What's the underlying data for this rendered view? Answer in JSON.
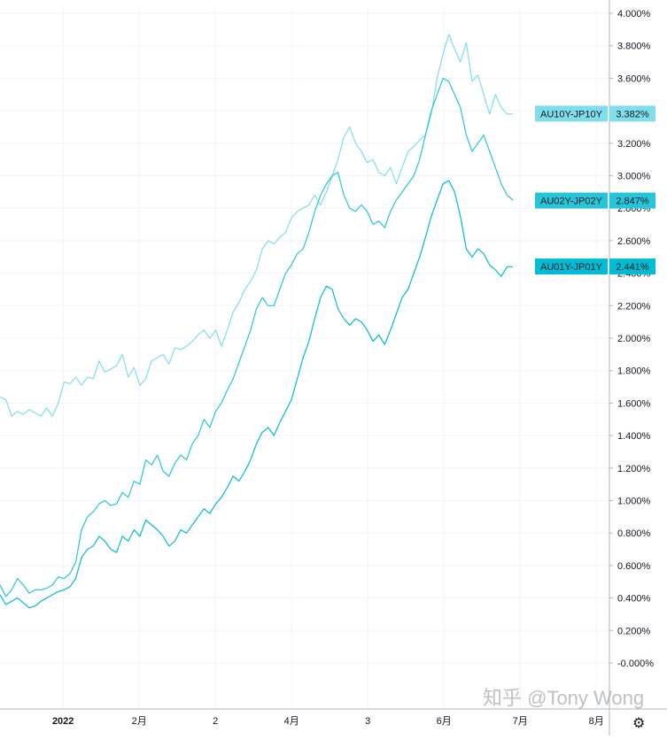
{
  "chart_data": {
    "type": "line",
    "ylim": [
      -0.1,
      4.05
    ],
    "yticks": [
      "4.000%",
      "3.800%",
      "3.600%",
      "3.400%",
      "3.200%",
      "3.000%",
      "2.800%",
      "2.600%",
      "2.400%",
      "2.200%",
      "2.000%",
      "1.800%",
      "1.600%",
      "1.400%",
      "1.200%",
      "1.000%",
      "0.800%",
      "0.600%",
      "0.400%",
      "0.200%",
      "-0.000%"
    ],
    "ytick_values": [
      4.0,
      3.8,
      3.6,
      3.4,
      3.2,
      3.0,
      2.8,
      2.6,
      2.4,
      2.2,
      2.0,
      1.8,
      1.6,
      1.4,
      1.2,
      1.0,
      0.8,
      0.6,
      0.4,
      0.2,
      0.0
    ],
    "xticks": [
      {
        "label": "2022",
        "pos": 0.118,
        "bold": true
      },
      {
        "label": "2月",
        "pos": 0.243,
        "bold": false
      },
      {
        "label": "2",
        "pos": 0.368,
        "bold": false
      },
      {
        "label": "4月",
        "pos": 0.493,
        "bold": false
      },
      {
        "label": "3",
        "pos": 0.618,
        "bold": false
      },
      {
        "label": "6月",
        "pos": 0.743,
        "bold": false
      },
      {
        "label": "7月",
        "pos": 0.868,
        "bold": false
      },
      {
        "label": "8月",
        "pos": 0.993,
        "bold": false
      }
    ],
    "grid": true,
    "series": [
      {
        "name": "AU10Y-JP10Y",
        "last_value": "3.382%",
        "color": "#80deea",
        "x": [
          0.0,
          0.01,
          0.02,
          0.03,
          0.04,
          0.05,
          0.06,
          0.07,
          0.08,
          0.09,
          0.1,
          0.11,
          0.12,
          0.13,
          0.14,
          0.15,
          0.16,
          0.17,
          0.18,
          0.19,
          0.2,
          0.21,
          0.22,
          0.23,
          0.24,
          0.25,
          0.26,
          0.27,
          0.28,
          0.29,
          0.3,
          0.31,
          0.32,
          0.33,
          0.34,
          0.35,
          0.36,
          0.37,
          0.38,
          0.39,
          0.4,
          0.41,
          0.42,
          0.43,
          0.44,
          0.45,
          0.46,
          0.47,
          0.48,
          0.49,
          0.5,
          0.51,
          0.52,
          0.53,
          0.54,
          0.55,
          0.56,
          0.57,
          0.58,
          0.59,
          0.6,
          0.61,
          0.62,
          0.63,
          0.64,
          0.65,
          0.66,
          0.67,
          0.68,
          0.69,
          0.7,
          0.71,
          0.72,
          0.73,
          0.74,
          0.75,
          0.76,
          0.77,
          0.78,
          0.79,
          0.8,
          0.81,
          0.82,
          0.83,
          0.84,
          0.85,
          0.86,
          0.87,
          0.88
        ],
        "y": [
          1.64,
          1.62,
          1.52,
          1.55,
          1.53,
          1.56,
          1.54,
          1.52,
          1.57,
          1.52,
          1.6,
          1.73,
          1.72,
          1.76,
          1.71,
          1.76,
          1.75,
          1.86,
          1.79,
          1.81,
          1.83,
          1.9,
          1.76,
          1.82,
          1.71,
          1.75,
          1.86,
          1.88,
          1.9,
          1.84,
          1.94,
          1.93,
          1.95,
          1.98,
          2.02,
          2.05,
          2.0,
          2.05,
          1.95,
          2.05,
          2.16,
          2.22,
          2.3,
          2.35,
          2.42,
          2.55,
          2.6,
          2.58,
          2.62,
          2.65,
          2.74,
          2.78,
          2.8,
          2.82,
          2.88,
          2.82,
          2.9,
          3.0,
          3.1,
          3.24,
          3.3,
          3.2,
          3.15,
          3.08,
          3.1,
          3.02,
          3.0,
          3.05,
          2.95,
          3.05,
          3.15,
          3.18,
          3.22,
          3.25,
          3.38,
          3.6,
          3.75,
          3.87,
          3.78,
          3.7,
          3.82,
          3.58,
          3.62,
          3.5,
          3.38,
          3.5,
          3.42,
          3.38,
          3.38
        ]
      },
      {
        "name": "AU02Y-JP02Y",
        "last_value": "2.847%",
        "color": "#26c6da",
        "x": [
          0.0,
          0.01,
          0.02,
          0.03,
          0.04,
          0.05,
          0.06,
          0.07,
          0.08,
          0.09,
          0.1,
          0.11,
          0.12,
          0.13,
          0.14,
          0.15,
          0.16,
          0.17,
          0.18,
          0.19,
          0.2,
          0.21,
          0.22,
          0.23,
          0.24,
          0.25,
          0.26,
          0.27,
          0.28,
          0.29,
          0.3,
          0.31,
          0.32,
          0.33,
          0.34,
          0.35,
          0.36,
          0.37,
          0.38,
          0.39,
          0.4,
          0.41,
          0.42,
          0.43,
          0.44,
          0.45,
          0.46,
          0.47,
          0.48,
          0.49,
          0.5,
          0.51,
          0.52,
          0.53,
          0.54,
          0.55,
          0.56,
          0.57,
          0.58,
          0.59,
          0.6,
          0.61,
          0.62,
          0.63,
          0.64,
          0.65,
          0.66,
          0.67,
          0.68,
          0.69,
          0.7,
          0.71,
          0.72,
          0.73,
          0.74,
          0.75,
          0.76,
          0.77,
          0.78,
          0.79,
          0.8,
          0.81,
          0.82,
          0.83,
          0.84,
          0.85,
          0.86,
          0.87,
          0.88
        ],
        "y": [
          0.48,
          0.41,
          0.45,
          0.52,
          0.48,
          0.43,
          0.45,
          0.45,
          0.46,
          0.48,
          0.53,
          0.52,
          0.55,
          0.62,
          0.82,
          0.9,
          0.93,
          0.98,
          1.0,
          0.97,
          0.98,
          1.05,
          1.02,
          1.12,
          1.1,
          1.25,
          1.22,
          1.28,
          1.18,
          1.15,
          1.23,
          1.28,
          1.25,
          1.35,
          1.4,
          1.5,
          1.45,
          1.55,
          1.6,
          1.68,
          1.75,
          1.85,
          1.95,
          2.05,
          2.18,
          2.25,
          2.2,
          2.2,
          2.3,
          2.4,
          2.45,
          2.52,
          2.55,
          2.65,
          2.78,
          2.88,
          2.95,
          3.0,
          3.02,
          2.88,
          2.8,
          2.78,
          2.82,
          2.78,
          2.7,
          2.72,
          2.68,
          2.78,
          2.85,
          2.9,
          2.95,
          3.0,
          3.1,
          3.25,
          3.4,
          3.5,
          3.6,
          3.58,
          3.5,
          3.42,
          3.25,
          3.15,
          3.2,
          3.25,
          3.15,
          3.05,
          2.95,
          2.88,
          2.85
        ]
      },
      {
        "name": "AU01Y-JP01Y",
        "last_value": "2.441%",
        "color": "#00bcd4",
        "x": [
          0.0,
          0.01,
          0.02,
          0.03,
          0.04,
          0.05,
          0.06,
          0.07,
          0.08,
          0.09,
          0.1,
          0.11,
          0.12,
          0.13,
          0.14,
          0.15,
          0.16,
          0.17,
          0.18,
          0.19,
          0.2,
          0.21,
          0.22,
          0.23,
          0.24,
          0.25,
          0.26,
          0.27,
          0.28,
          0.29,
          0.3,
          0.31,
          0.32,
          0.33,
          0.34,
          0.35,
          0.36,
          0.37,
          0.38,
          0.39,
          0.4,
          0.41,
          0.42,
          0.43,
          0.44,
          0.45,
          0.46,
          0.47,
          0.48,
          0.49,
          0.5,
          0.51,
          0.52,
          0.53,
          0.54,
          0.55,
          0.56,
          0.57,
          0.58,
          0.59,
          0.6,
          0.61,
          0.62,
          0.63,
          0.64,
          0.65,
          0.66,
          0.67,
          0.68,
          0.69,
          0.7,
          0.71,
          0.72,
          0.73,
          0.74,
          0.75,
          0.76,
          0.77,
          0.78,
          0.79,
          0.8,
          0.81,
          0.82,
          0.83,
          0.84,
          0.85,
          0.86,
          0.87,
          0.88
        ],
        "y": [
          0.42,
          0.36,
          0.38,
          0.4,
          0.37,
          0.34,
          0.35,
          0.38,
          0.4,
          0.42,
          0.44,
          0.45,
          0.47,
          0.52,
          0.65,
          0.7,
          0.72,
          0.78,
          0.75,
          0.7,
          0.68,
          0.78,
          0.75,
          0.82,
          0.78,
          0.88,
          0.85,
          0.82,
          0.78,
          0.72,
          0.75,
          0.82,
          0.8,
          0.85,
          0.9,
          0.95,
          0.92,
          0.98,
          1.02,
          1.08,
          1.15,
          1.12,
          1.18,
          1.25,
          1.35,
          1.42,
          1.45,
          1.4,
          1.48,
          1.55,
          1.62,
          1.75,
          1.88,
          1.98,
          2.12,
          2.25,
          2.32,
          2.3,
          2.18,
          2.12,
          2.08,
          2.12,
          2.1,
          2.05,
          1.98,
          2.02,
          1.96,
          2.05,
          2.15,
          2.25,
          2.3,
          2.4,
          2.5,
          2.62,
          2.75,
          2.85,
          2.95,
          2.97,
          2.9,
          2.75,
          2.55,
          2.5,
          2.55,
          2.52,
          2.45,
          2.42,
          2.38,
          2.44,
          2.44
        ]
      }
    ],
    "watermark": "知乎 @Tony Wong"
  }
}
